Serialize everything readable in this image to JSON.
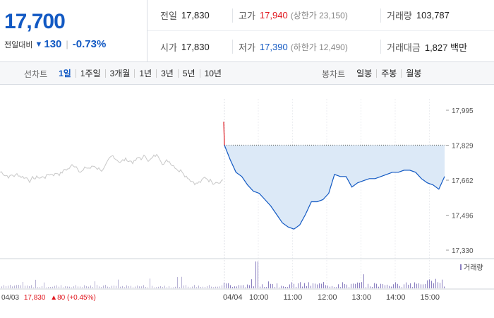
{
  "summary": {
    "current_price": "17,700",
    "change_label": "전일대비",
    "change_icon": "down-triangle-icon",
    "change_amount": "130",
    "change_percent": "-0.73%"
  },
  "stats": {
    "prev_close": {
      "label": "전일",
      "value": "17,830"
    },
    "high": {
      "label": "고가",
      "value": "17,940",
      "sub": "(상한가 23,150)"
    },
    "volume": {
      "label": "거래량",
      "value": "103,787"
    },
    "open": {
      "label": "시가",
      "value": "17,830"
    },
    "low": {
      "label": "저가",
      "value": "17,390",
      "sub": "(하한가 12,490)"
    },
    "trade_value": {
      "label": "거래대금",
      "value": "1,827 백만"
    }
  },
  "line_tabs": {
    "title": "선차트",
    "items": [
      "1일",
      "1주일",
      "3개월",
      "1년",
      "3년",
      "5년",
      "10년"
    ],
    "active": 0
  },
  "candle_tabs": {
    "title": "봉차트",
    "items": [
      "일봉",
      "주봉",
      "월봉"
    ]
  },
  "colors": {
    "accent_blue": "#1259c3",
    "up_red": "#e0161e",
    "prev_day_line": "#c8c8c8",
    "fill": "#dce9f7",
    "volume": "#8a7fc0"
  },
  "chart_data": {
    "type": "line",
    "y_ticks": [
      "17,995",
      "17,829",
      "17,662",
      "17,496",
      "17,330"
    ],
    "ylim": [
      17330,
      17995
    ],
    "prev_close": 17829,
    "x_labels": [
      "04/04",
      "10:00",
      "11:00",
      "12:00",
      "13:00",
      "14:00",
      "15:00"
    ],
    "prev_day_label": {
      "date": "04/03",
      "price": "17,830",
      "change": "▲80 (+0.45%)"
    },
    "volume_label": "거래량",
    "series": [
      {
        "values": [
          17829,
          17760,
          17700,
          17680,
          17640,
          17610,
          17600,
          17570,
          17540,
          17500,
          17460,
          17440,
          17430,
          17450,
          17500,
          17560,
          17560,
          17570,
          17600,
          17690,
          17680,
          17680,
          17630,
          17650,
          17660,
          17670,
          17670,
          17680,
          17690,
          17700,
          17700,
          17710,
          17710,
          17700,
          17670,
          17650,
          17640,
          17620,
          17680
        ]
      }
    ]
  }
}
